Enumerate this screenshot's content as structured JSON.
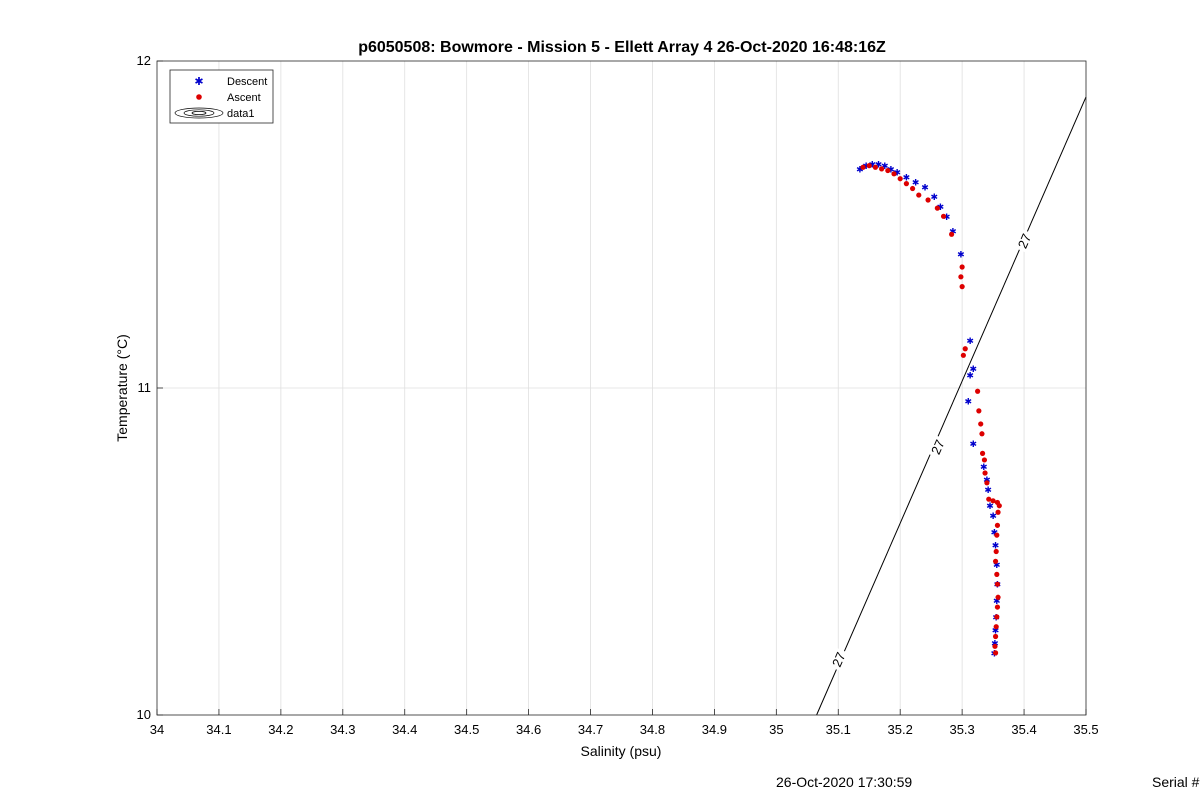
{
  "chart_data": {
    "type": "scatter",
    "title": "p6050508: Bowmore - Mission 5 - Ellett Array 4 26-Oct-2020 16:48:16Z",
    "xlabel": "Salinity (psu)",
    "ylabel": "Temperature (°C)",
    "xlim": [
      34,
      35.5
    ],
    "ylim": [
      10,
      12
    ],
    "x_ticks": [
      "34",
      "34.1",
      "34.2",
      "34.3",
      "34.4",
      "34.5",
      "34.6",
      "34.7",
      "34.8",
      "34.9",
      "35",
      "35.1",
      "35.2",
      "35.3",
      "35.4",
      "35.5"
    ],
    "y_ticks": [
      "10",
      "11",
      "12"
    ],
    "grid": true,
    "legend_position": "top-left",
    "legend": [
      "Descent",
      "Ascent",
      "data1"
    ],
    "contours": [
      {
        "name": "data1",
        "level_label": "27",
        "line": [
          [
            35.065,
            10.0
          ],
          [
            35.5,
            11.89
          ]
        ],
        "label_positions": [
          [
            35.1,
            10.17
          ],
          [
            35.26,
            10.82
          ],
          [
            35.4,
            11.45
          ]
        ]
      }
    ],
    "series": [
      {
        "name": "Descent",
        "color": "#0000cc",
        "marker": "star",
        "points": [
          [
            35.135,
            11.67
          ],
          [
            35.145,
            11.68
          ],
          [
            35.155,
            11.685
          ],
          [
            35.165,
            11.685
          ],
          [
            35.175,
            11.68
          ],
          [
            35.185,
            11.67
          ],
          [
            35.195,
            11.66
          ],
          [
            35.21,
            11.645
          ],
          [
            35.225,
            11.63
          ],
          [
            35.24,
            11.615
          ],
          [
            35.255,
            11.585
          ],
          [
            35.265,
            11.555
          ],
          [
            35.275,
            11.525
          ],
          [
            35.285,
            11.48
          ],
          [
            35.298,
            11.41
          ],
          [
            35.313,
            11.145
          ],
          [
            35.318,
            11.06
          ],
          [
            35.313,
            11.04
          ],
          [
            35.31,
            10.96
          ],
          [
            35.318,
            10.83
          ],
          [
            35.335,
            10.76
          ],
          [
            35.34,
            10.72
          ],
          [
            35.342,
            10.69
          ],
          [
            35.345,
            10.64
          ],
          [
            35.35,
            10.61
          ],
          [
            35.352,
            10.56
          ],
          [
            35.354,
            10.52
          ],
          [
            35.356,
            10.46
          ],
          [
            35.357,
            10.4
          ],
          [
            35.356,
            10.35
          ],
          [
            35.355,
            10.3
          ],
          [
            35.354,
            10.26
          ],
          [
            35.353,
            10.22
          ],
          [
            35.352,
            10.19
          ]
        ]
      },
      {
        "name": "Ascent",
        "color": "#dd0000",
        "marker": "circle",
        "points": [
          [
            35.14,
            11.675
          ],
          [
            35.15,
            11.68
          ],
          [
            35.16,
            11.675
          ],
          [
            35.17,
            11.67
          ],
          [
            35.18,
            11.665
          ],
          [
            35.19,
            11.655
          ],
          [
            35.2,
            11.64
          ],
          [
            35.21,
            11.625
          ],
          [
            35.22,
            11.61
          ],
          [
            35.23,
            11.59
          ],
          [
            35.245,
            11.575
          ],
          [
            35.26,
            11.55
          ],
          [
            35.27,
            11.525
          ],
          [
            35.283,
            11.47
          ],
          [
            35.3,
            11.37
          ],
          [
            35.298,
            11.34
          ],
          [
            35.3,
            11.31
          ],
          [
            35.305,
            11.12
          ],
          [
            35.302,
            11.1
          ],
          [
            35.325,
            10.99
          ],
          [
            35.327,
            10.93
          ],
          [
            35.33,
            10.89
          ],
          [
            35.332,
            10.86
          ],
          [
            35.333,
            10.8
          ],
          [
            35.336,
            10.78
          ],
          [
            35.337,
            10.74
          ],
          [
            35.34,
            10.71
          ],
          [
            35.343,
            10.66
          ],
          [
            35.35,
            10.655
          ],
          [
            35.357,
            10.65
          ],
          [
            35.36,
            10.64
          ],
          [
            35.358,
            10.62
          ],
          [
            35.357,
            10.58
          ],
          [
            35.356,
            10.55
          ],
          [
            35.355,
            10.5
          ],
          [
            35.354,
            10.47
          ],
          [
            35.356,
            10.43
          ],
          [
            35.357,
            10.4
          ],
          [
            35.358,
            10.36
          ],
          [
            35.357,
            10.33
          ],
          [
            35.356,
            10.3
          ],
          [
            35.355,
            10.27
          ],
          [
            35.354,
            10.24
          ],
          [
            35.353,
            10.21
          ],
          [
            35.354,
            10.19
          ]
        ]
      }
    ]
  },
  "footer": {
    "timestamp": "26-Oct-2020 17:30:59",
    "serial": "Serial #"
  }
}
